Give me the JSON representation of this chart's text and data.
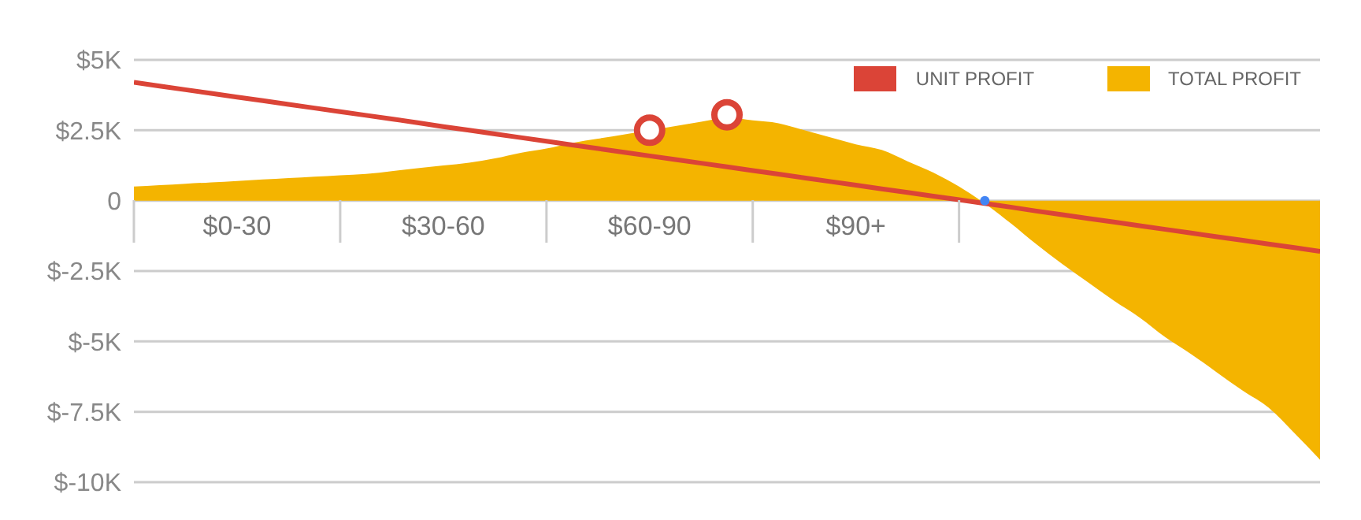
{
  "chart_data": {
    "type": "area",
    "categories": [
      null,
      null,
      null,
      null,
      "$0-30",
      null,
      null,
      null,
      null,
      null,
      null,
      null,
      "$30-60",
      null,
      null,
      null,
      null,
      null,
      null,
      null,
      "$60-90",
      null,
      null,
      null,
      null,
      null,
      null,
      null,
      "$90+",
      null,
      null,
      null,
      null,
      null,
      null,
      null,
      null,
      null,
      null,
      null,
      null,
      null,
      null,
      null,
      null,
      null,
      null
    ],
    "ylim": [
      -10000,
      5000
    ],
    "yticks": [
      {
        "value": 5000,
        "label": "$5K"
      },
      {
        "value": 2500,
        "label": "$2.5K"
      },
      {
        "value": 0,
        "label": "0"
      },
      {
        "value": -2500,
        "label": "$-2.5K"
      },
      {
        "value": -5000,
        "label": "$-5K"
      },
      {
        "value": -7500,
        "label": "$-7.5K"
      },
      {
        "value": -10000,
        "label": "$-10K"
      }
    ],
    "grid": "y",
    "legend": "top right",
    "series": [
      {
        "name": "UNIT PROFIT",
        "type": "line",
        "color": "#db4437",
        "values": [
          4200,
          4070,
          3940,
          3810,
          3680,
          3550,
          3420,
          3290,
          3160,
          3030,
          2900,
          2770,
          2630,
          2500,
          2370,
          2240,
          2110,
          1980,
          1850,
          1720,
          1590,
          1460,
          1330,
          1200,
          1070,
          940,
          810,
          680,
          550,
          420,
          290,
          160,
          30,
          -100,
          -230,
          -370,
          -500,
          -630,
          -760,
          -890,
          -1020,
          -1150,
          -1280,
          -1410,
          -1540,
          -1670,
          -1800
        ]
      },
      {
        "name": "TOTAL PROFIT",
        "color": "#f4b400",
        "values": [
          500,
          550,
          600,
          650,
          700,
          750,
          800,
          850,
          900,
          950,
          1050,
          1150,
          1250,
          1350,
          1500,
          1700,
          1850,
          2050,
          2200,
          2350,
          2500,
          2650,
          2800,
          2950,
          2850,
          2750,
          2500,
          2250,
          2000,
          1800,
          1400,
          1000,
          500,
          -100,
          -800,
          -1550,
          -2250,
          -2900,
          -3550,
          -4150,
          -4850,
          -5450,
          -6100,
          -6750,
          -7350,
          -8250,
          -9200
        ]
      },
      {
        "type": "scatter",
        "color": "#db4437",
        "marker": "circle",
        "values": [
          null,
          null,
          null,
          null,
          null,
          null,
          null,
          null,
          null,
          null,
          null,
          null,
          null,
          null,
          null,
          null,
          null,
          null,
          null,
          null,
          2500,
          null,
          null,
          3050,
          null,
          null,
          null,
          null,
          null,
          null,
          null,
          null,
          null,
          null,
          null,
          null,
          null,
          null,
          null,
          null,
          null,
          null,
          null,
          null,
          null,
          null,
          null
        ]
      },
      {
        "type": "scatter",
        "color": "#4285f4",
        "marker": "circle",
        "values": [
          null,
          null,
          null,
          null,
          null,
          null,
          null,
          null,
          null,
          null,
          null,
          null,
          null,
          null,
          null,
          null,
          null,
          null,
          null,
          null,
          null,
          null,
          null,
          null,
          null,
          null,
          null,
          null,
          null,
          null,
          null,
          null,
          null,
          0,
          null,
          null,
          null,
          null,
          null,
          null,
          null,
          null,
          null,
          null,
          null,
          null,
          null
        ]
      }
    ]
  }
}
